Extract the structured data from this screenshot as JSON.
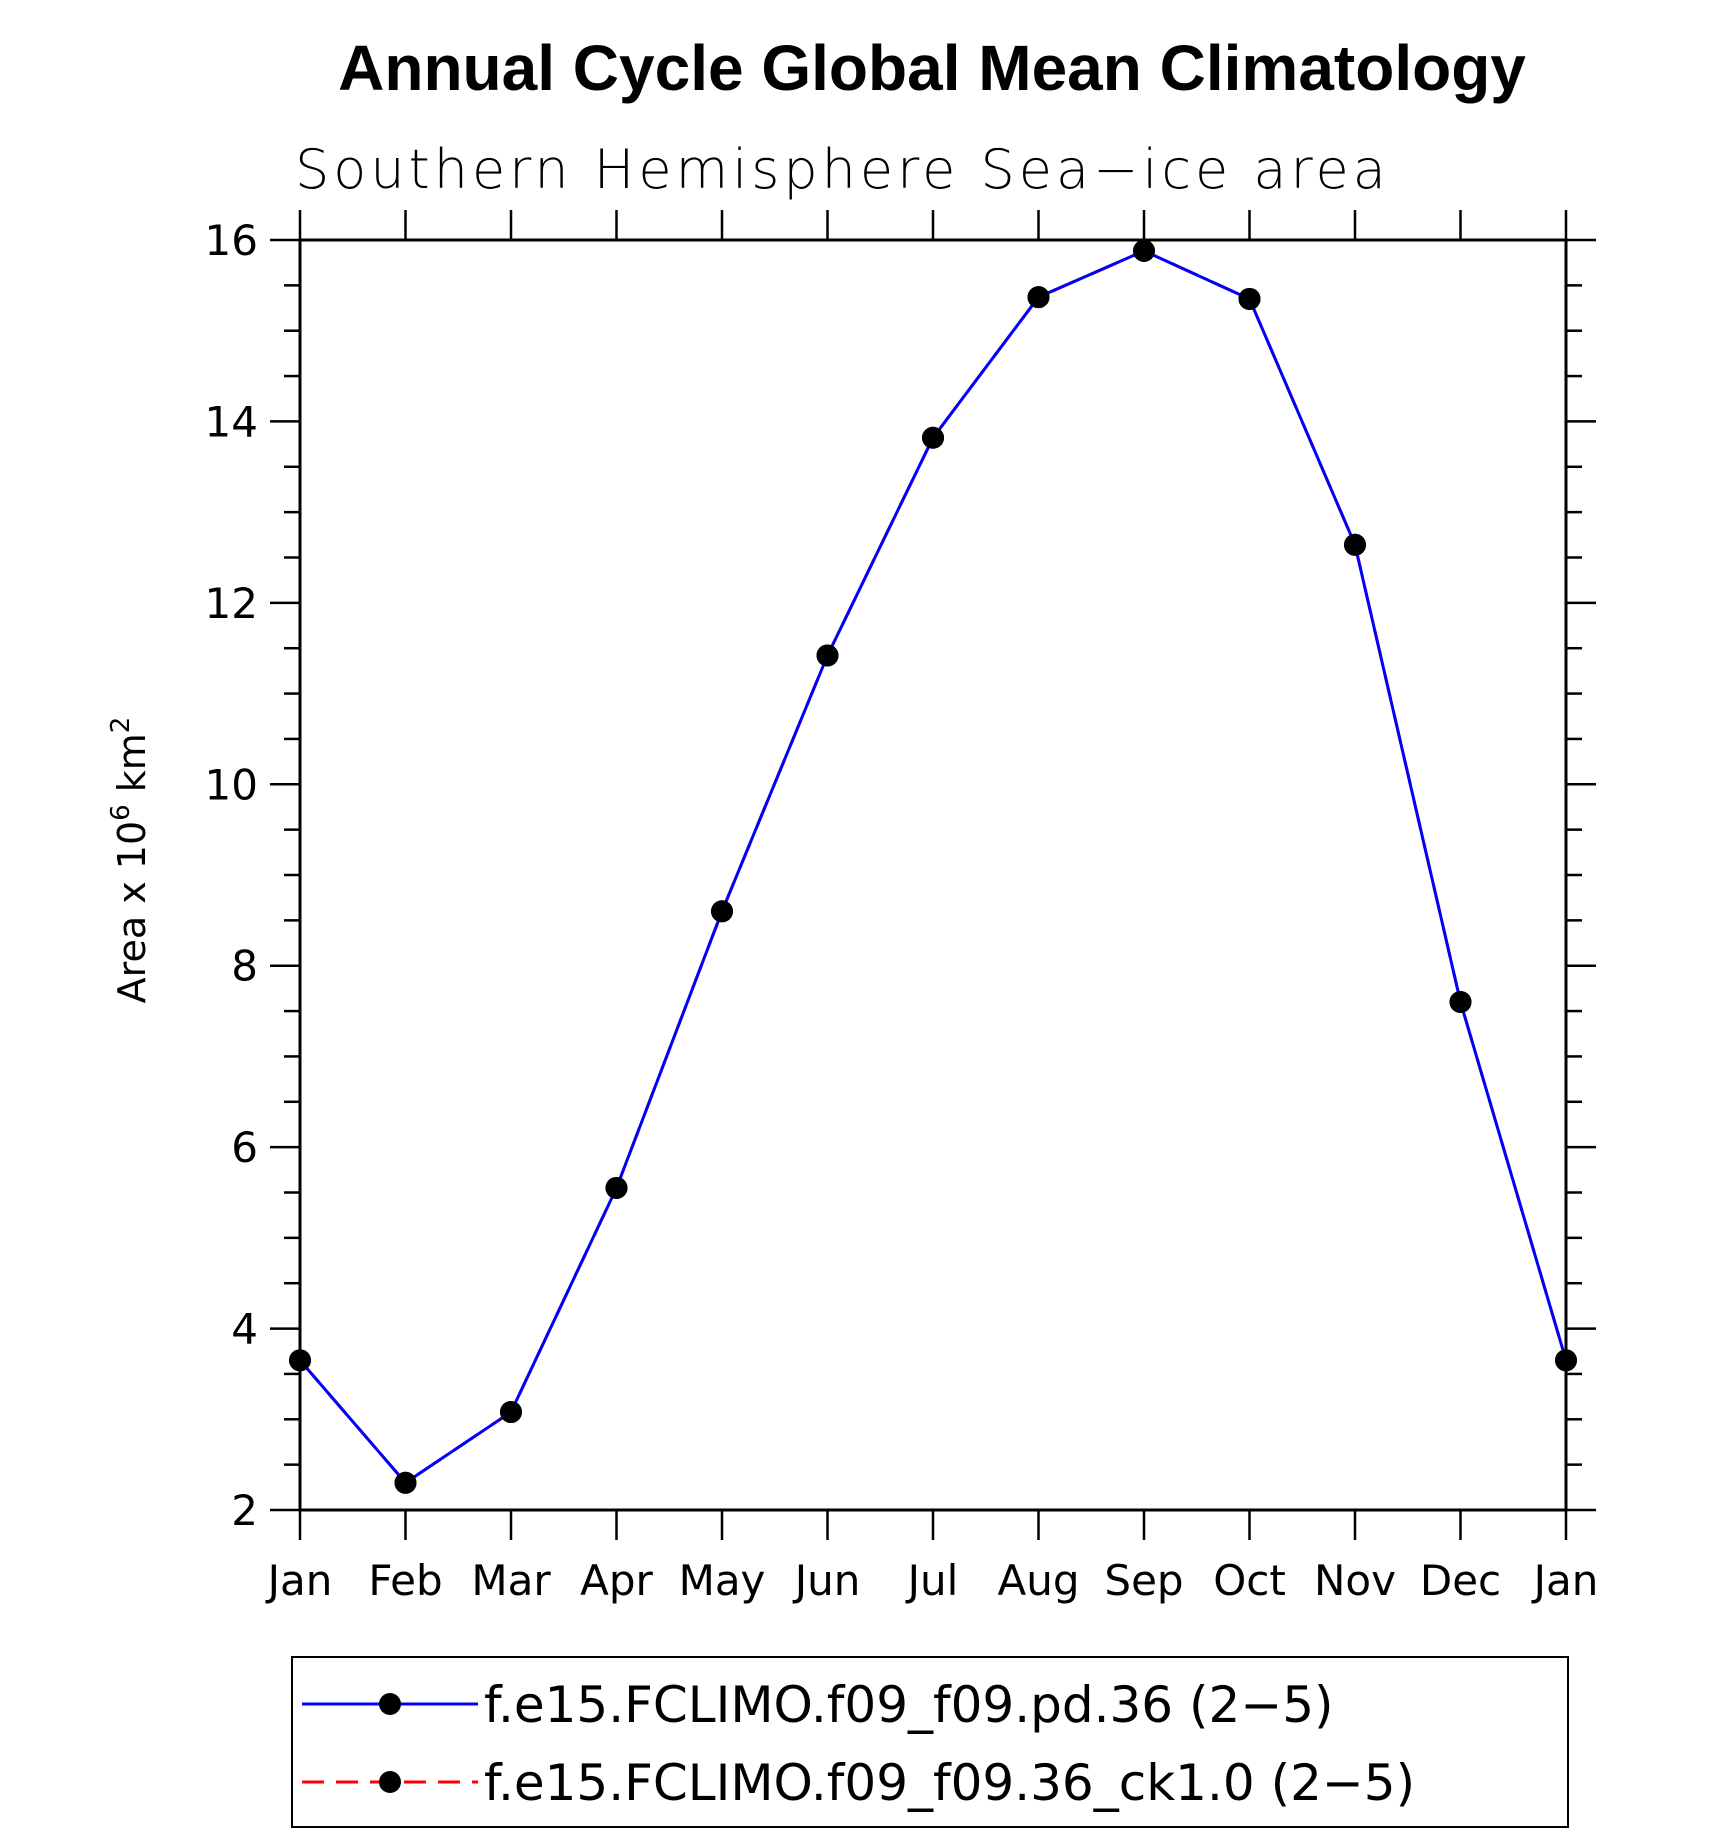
{
  "chart_data": {
    "type": "line",
    "title": "Annual Cycle Global Mean Climatology",
    "subtitle": "Southern Hemisphere Sea−ice area",
    "ylabel_parts": {
      "prefix": "Area x 10",
      "exp": "6",
      "unit": " km",
      "unit_exp": "2"
    },
    "xlabel": "",
    "categories": [
      "Jan",
      "Feb",
      "Mar",
      "Apr",
      "May",
      "Jun",
      "Jul",
      "Aug",
      "Sep",
      "Oct",
      "Nov",
      "Dec",
      "Jan"
    ],
    "ylim": [
      2,
      16
    ],
    "yticks": [
      2,
      4,
      6,
      8,
      10,
      12,
      14,
      16
    ],
    "series": [
      {
        "name": "f.e15.FCLIMO.f09_f09.pd.36 (2−5)",
        "color": "#0000ff",
        "dash": "solid",
        "values": [
          3.65,
          2.3,
          3.08,
          5.55,
          8.6,
          11.42,
          13.82,
          15.37,
          15.88,
          15.35,
          12.64,
          7.6,
          3.65
        ]
      },
      {
        "name": "f.e15.FCLIMO.f09_f09.36_ck1.0 (2−5)",
        "color": "#ff0000",
        "dash": "dashed",
        "values": [
          3.65,
          2.3,
          3.08,
          5.55,
          8.6,
          11.42,
          13.82,
          15.37,
          15.88,
          15.35,
          12.64,
          7.6,
          3.65
        ]
      }
    ],
    "marker": "filled-circle",
    "marker_color": "#000000",
    "legend_position": "bottom"
  }
}
